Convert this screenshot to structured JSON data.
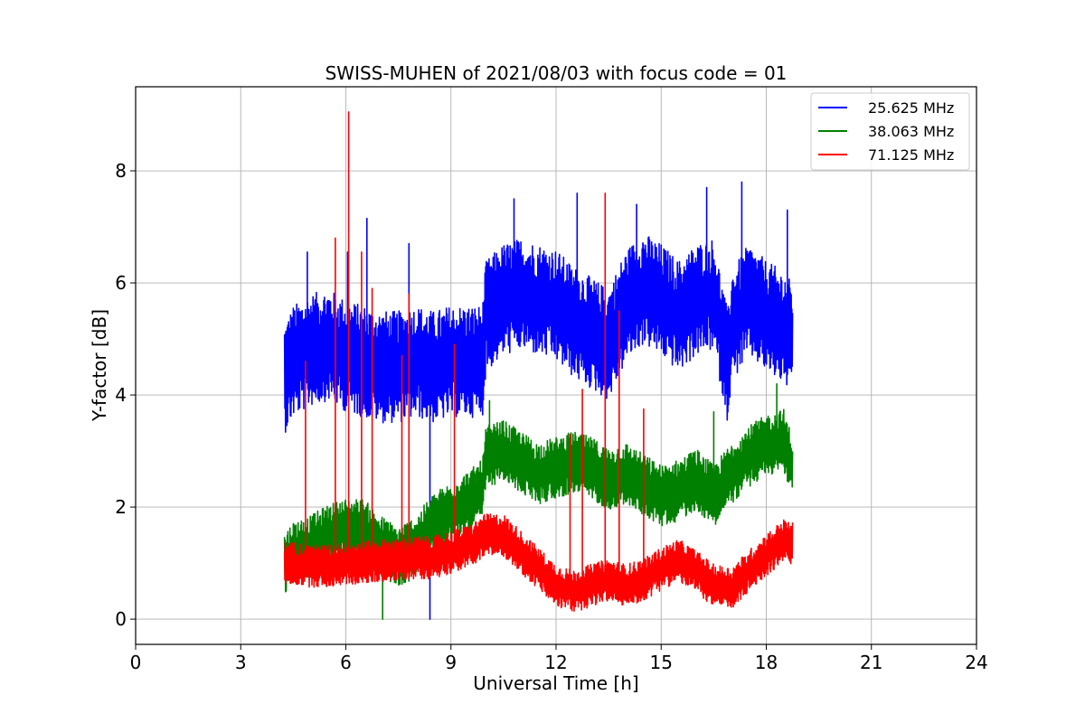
{
  "chart_data": {
    "type": "line",
    "title": "SWISS-MUHEN of 2021/08/03 with focus code = 01",
    "xlabel": "Universal Time [h]",
    "ylabel": "Y-factor [dB]",
    "xlim": [
      0,
      24
    ],
    "ylim": [
      -0.45,
      9.5
    ],
    "xticks": [
      0,
      3,
      6,
      9,
      12,
      15,
      18,
      21,
      24
    ],
    "yticks": [
      0,
      2,
      4,
      6,
      8
    ],
    "grid": true,
    "legend_position": "top-right",
    "series": [
      {
        "name": "25.625 MHz",
        "color": "#0000ff",
        "x": [
          4.25,
          4.5,
          5.0,
          5.5,
          6.0,
          6.5,
          7.0,
          7.5,
          8.0,
          8.5,
          9.0,
          9.5,
          9.9,
          10.0,
          10.5,
          11.0,
          11.5,
          12.0,
          12.5,
          13.0,
          13.5,
          14.0,
          14.5,
          15.0,
          15.5,
          16.0,
          16.5,
          16.9,
          17.0,
          17.5,
          18.0,
          18.5,
          18.75
        ],
        "y": [
          4.3,
          4.6,
          4.8,
          4.9,
          4.7,
          4.6,
          4.5,
          4.5,
          4.6,
          4.5,
          4.6,
          4.6,
          4.6,
          5.4,
          5.7,
          5.8,
          5.7,
          5.6,
          5.3,
          5.1,
          4.9,
          5.6,
          5.9,
          5.7,
          5.4,
          5.7,
          5.8,
          4.5,
          5.2,
          5.7,
          5.4,
          5.2,
          5.0
        ],
        "peaks": [
          [
            4.9,
            6.55
          ],
          [
            6.05,
            6.55
          ],
          [
            6.6,
            7.15
          ],
          [
            7.8,
            6.7
          ],
          [
            8.4,
            0.0
          ],
          [
            10.8,
            7.5
          ],
          [
            12.6,
            7.6
          ],
          [
            14.3,
            7.4
          ],
          [
            16.3,
            7.7
          ],
          [
            17.3,
            7.8
          ],
          [
            18.6,
            7.3
          ]
        ]
      },
      {
        "name": "38.063 MHz",
        "color": "#008000",
        "x": [
          4.25,
          4.5,
          5.0,
          5.5,
          6.0,
          6.5,
          7.0,
          7.5,
          8.0,
          8.5,
          9.0,
          9.5,
          9.9,
          10.0,
          10.5,
          11.0,
          11.5,
          12.0,
          12.5,
          13.0,
          13.5,
          14.0,
          14.5,
          15.0,
          15.5,
          16.0,
          16.5,
          17.0,
          17.5,
          18.0,
          18.5,
          18.75
        ],
        "y": [
          1.0,
          1.2,
          1.3,
          1.5,
          1.6,
          1.6,
          1.3,
          1.1,
          1.3,
          1.7,
          1.9,
          2.1,
          2.3,
          2.9,
          3.0,
          2.8,
          2.6,
          2.7,
          2.8,
          2.7,
          2.5,
          2.6,
          2.4,
          2.2,
          2.3,
          2.5,
          2.2,
          2.6,
          2.9,
          3.1,
          3.2,
          2.7
        ],
        "peaks": [
          [
            7.05,
            0.0
          ],
          [
            10.1,
            3.9
          ],
          [
            16.5,
            3.7
          ],
          [
            18.3,
            4.2
          ]
        ]
      },
      {
        "name": "71.125 MHz",
        "color": "#ff0000",
        "x": [
          4.25,
          4.5,
          5.0,
          5.5,
          6.0,
          6.5,
          7.0,
          7.5,
          8.0,
          8.5,
          9.0,
          9.5,
          10.0,
          10.5,
          11.0,
          11.5,
          12.0,
          12.5,
          13.0,
          13.5,
          14.0,
          14.5,
          15.0,
          15.5,
          16.0,
          16.5,
          17.0,
          17.5,
          18.0,
          18.5,
          18.75
        ],
        "y": [
          1.0,
          1.0,
          0.95,
          0.95,
          1.0,
          1.0,
          1.05,
          1.05,
          1.1,
          1.1,
          1.2,
          1.3,
          1.5,
          1.5,
          1.2,
          0.9,
          0.6,
          0.5,
          0.6,
          0.7,
          0.6,
          0.7,
          0.9,
          1.05,
          0.85,
          0.6,
          0.55,
          0.85,
          1.15,
          1.4,
          1.35
        ],
        "peaks": [
          [
            4.85,
            4.6
          ],
          [
            5.7,
            6.8
          ],
          [
            6.08,
            9.05
          ],
          [
            6.45,
            6.55
          ],
          [
            6.75,
            5.9
          ],
          [
            7.6,
            4.7
          ],
          [
            7.8,
            5.8
          ],
          [
            9.1,
            4.9
          ],
          [
            12.4,
            3.3
          ],
          [
            12.75,
            4.1
          ],
          [
            13.4,
            7.6
          ],
          [
            13.8,
            5.5
          ],
          [
            14.5,
            3.75
          ]
        ]
      }
    ]
  }
}
